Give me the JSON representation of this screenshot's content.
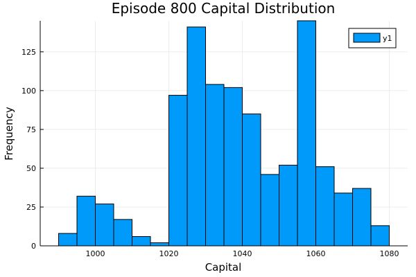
{
  "chart_data": {
    "type": "bar",
    "title": "Episode 800 Capital Distribution",
    "xlabel": "Capital",
    "ylabel": "Frequency",
    "xlim": [
      985,
      1085
    ],
    "ylim": [
      0,
      145
    ],
    "xticks": [
      1000,
      1020,
      1040,
      1060,
      1080
    ],
    "yticks": [
      0,
      25,
      50,
      75,
      100,
      125
    ],
    "grid": true,
    "legend_position": "top-right",
    "bin_edges": [
      990,
      995,
      1000,
      1005,
      1010,
      1015,
      1020,
      1025,
      1030,
      1035,
      1040,
      1045,
      1050,
      1055,
      1060,
      1065,
      1070,
      1075,
      1080
    ],
    "series": [
      {
        "name": "y1",
        "color": "#009AFA",
        "values": [
          8,
          32,
          27,
          17,
          6,
          2,
          97,
          141,
          104,
          102,
          85,
          46,
          52,
          145,
          51,
          34,
          37,
          13
        ]
      }
    ]
  }
}
